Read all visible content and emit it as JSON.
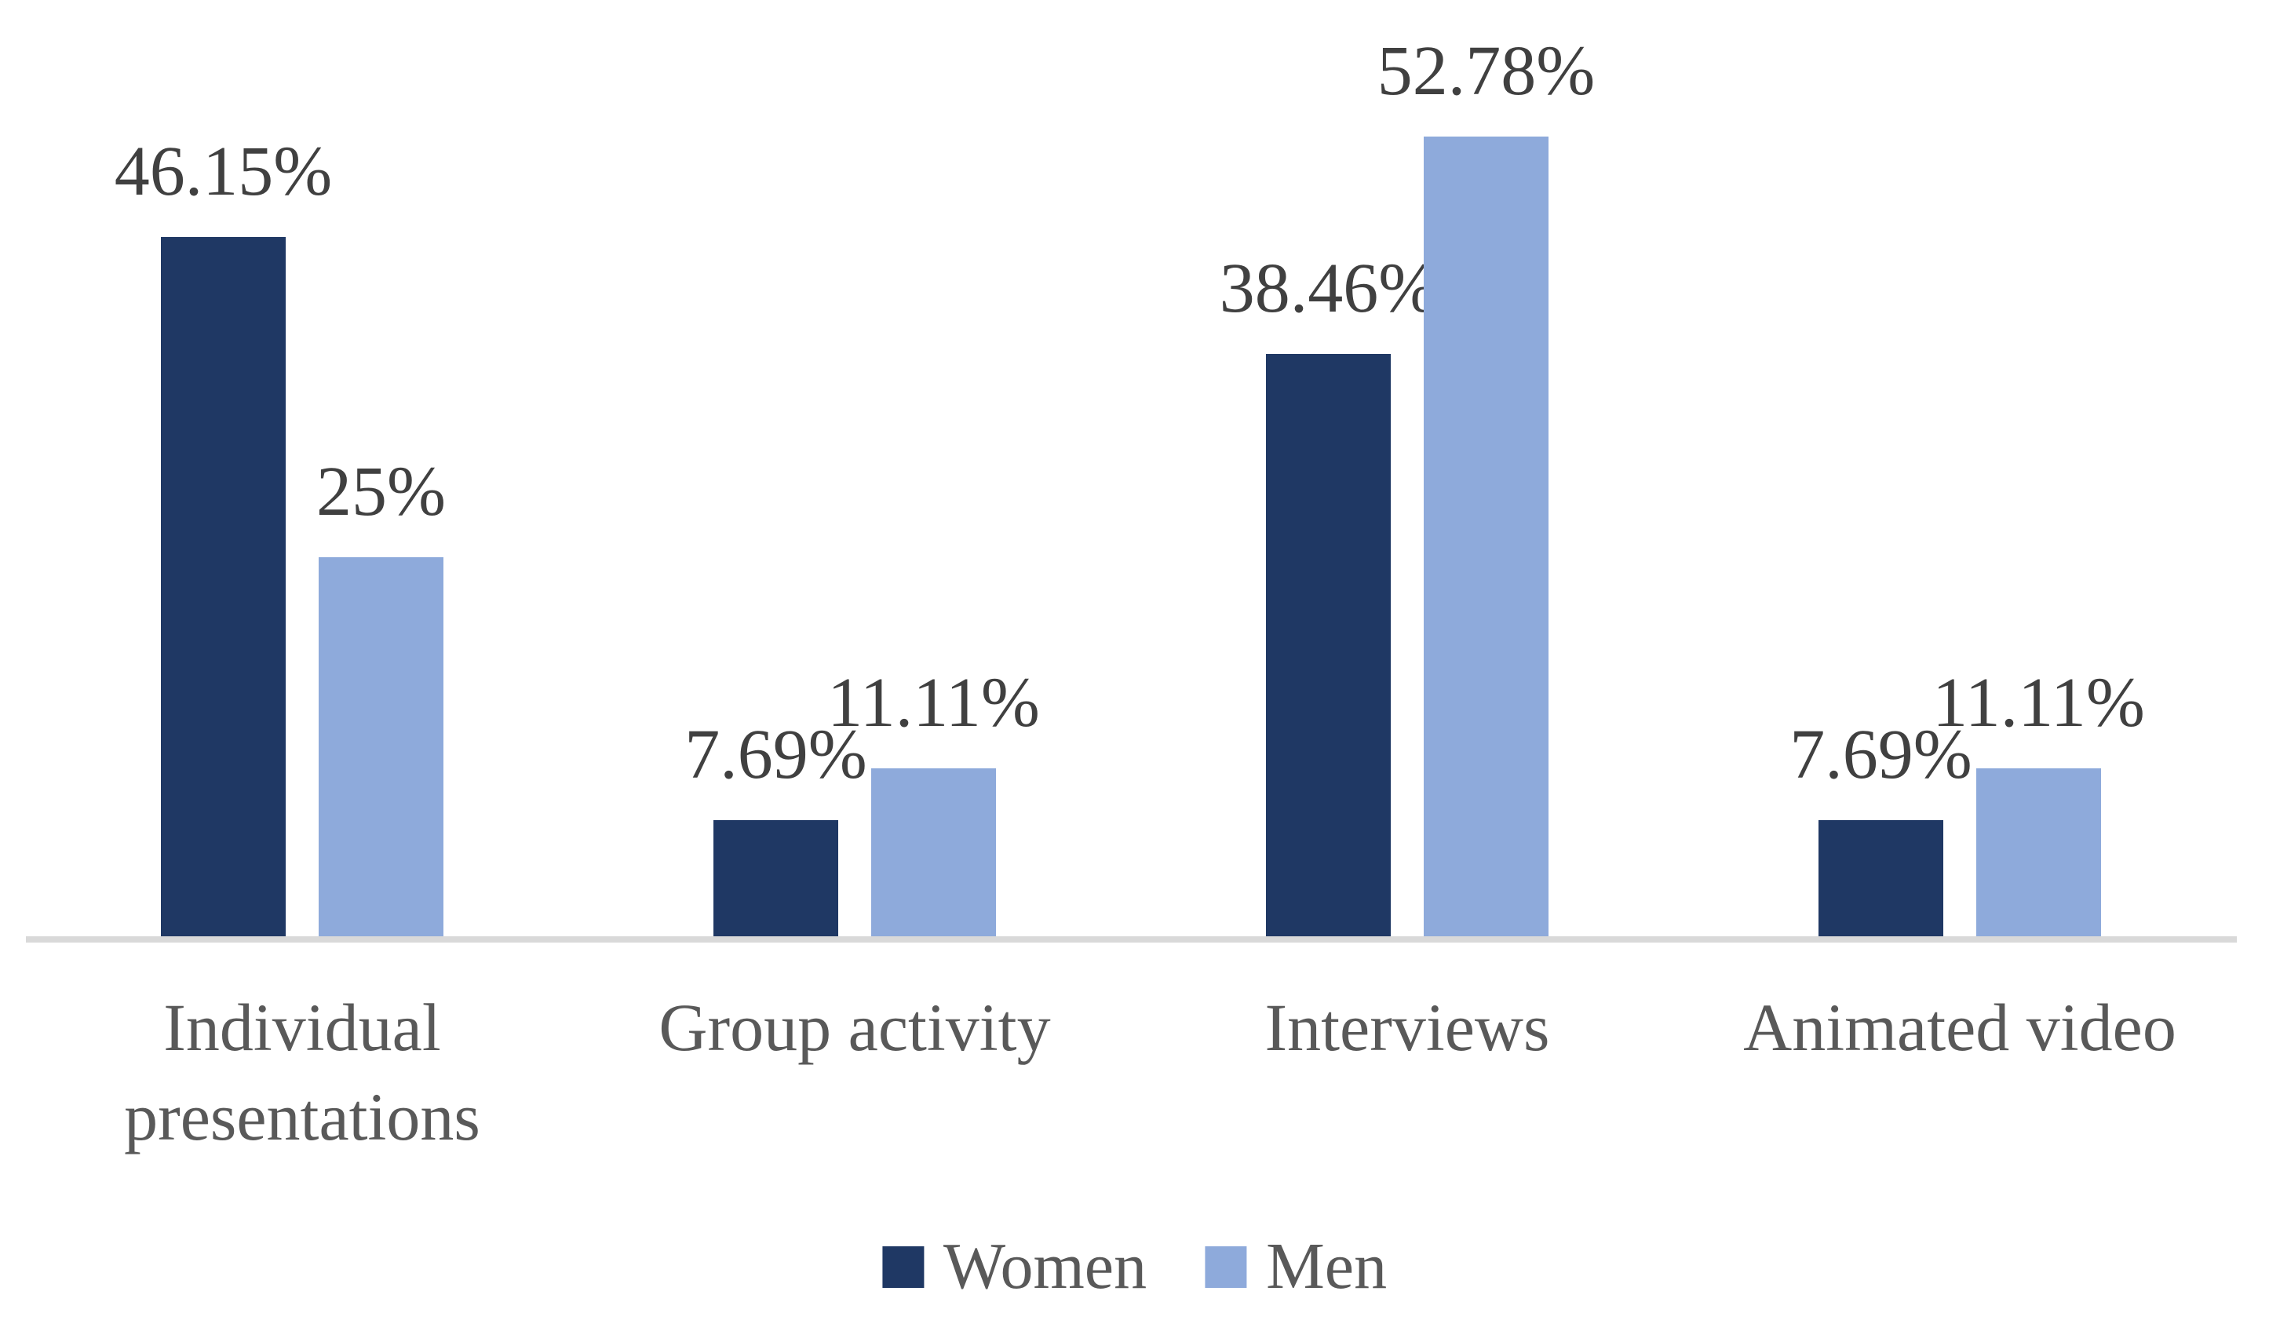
{
  "chart_data": {
    "type": "bar",
    "categories": [
      "Individual presentations",
      "Group activity",
      "Interviews",
      "Animated video"
    ],
    "series": [
      {
        "name": "Women",
        "color": "#1F3864",
        "values": [
          46.15,
          7.69,
          38.46,
          7.69
        ],
        "data_labels": [
          "46.15%",
          "7.69%",
          "38.46%",
          "7.69%"
        ]
      },
      {
        "name": "Men",
        "color": "#8EAADB",
        "values": [
          25,
          11.11,
          52.78,
          11.11
        ],
        "data_labels": [
          "25%",
          "11.11%",
          "52.78%",
          "11.11%"
        ]
      }
    ],
    "title": "",
    "xlabel": "",
    "ylabel": "",
    "ylim": [
      0,
      60
    ],
    "grid": false,
    "y_axis_visible": false,
    "axis_line_color": "#D9D9D9",
    "data_label_color": "#404040",
    "category_label_color": "#595959",
    "legend_position": "bottom",
    "background_color": "#FFFFFF"
  },
  "legend": {
    "items": [
      {
        "label": "Women",
        "color": "#1F3864"
      },
      {
        "label": "Men",
        "color": "#8EAADB"
      }
    ]
  }
}
